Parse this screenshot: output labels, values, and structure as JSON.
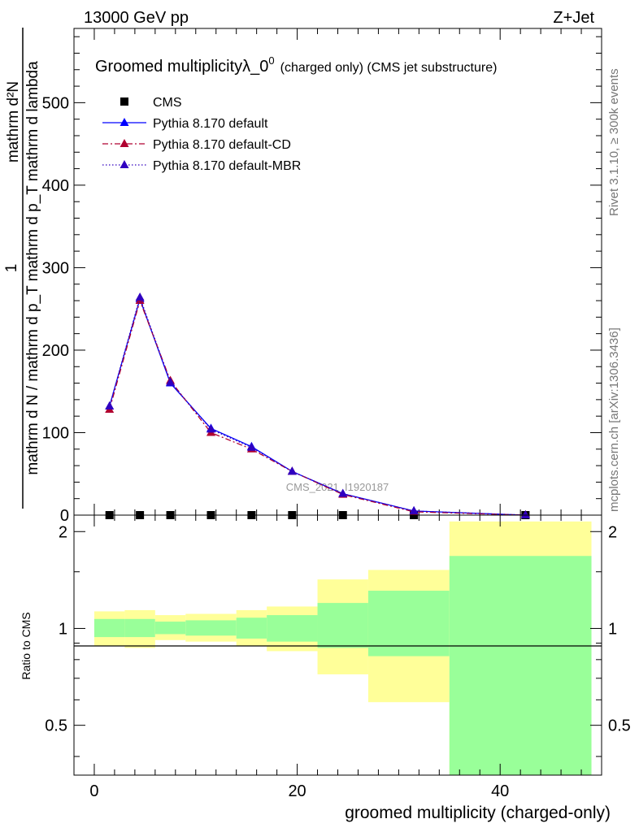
{
  "header": {
    "energy_label": "13000 GeV pp",
    "process_label": "Z+Jet"
  },
  "side": {
    "rivet_label": "Rivet 3.1.10, ≥ 300k events",
    "mcplots_label": "mcplots.cern.ch [arXiv:1306.3436]"
  },
  "chart_data": [
    {
      "type": "line",
      "title": "Groomed multiplicityλ_0",
      "title_sup": "0",
      "title_suffix": "(charged only) (CMS jet substructure)",
      "watermark": "CMS_2021_I1920187",
      "ylabel_top": "1",
      "ylabel_num": "mathrm d²N",
      "ylabel_den": "mathrm d N / mathrm d p_T mathrm d p_T mathrm d lambda",
      "ylim": [
        0,
        590
      ],
      "yticks": [
        "0",
        "100",
        "200",
        "300",
        "400",
        "500"
      ],
      "xlim": [
        -2,
        50
      ],
      "x": [
        1.5,
        4.5,
        7.5,
        11.5,
        15.5,
        19.5,
        24.5,
        31.5,
        42.5
      ],
      "series": [
        {
          "name": "CMS",
          "color": "#000000",
          "marker": "square",
          "values": [
            0,
            0,
            0,
            0,
            0,
            0,
            0,
            0,
            0
          ]
        },
        {
          "name": "Pythia 8.170 default",
          "color": "#0000ff",
          "marker": "triangle",
          "dash": "solid",
          "values": [
            132,
            262,
            160,
            105,
            83,
            53,
            26,
            5,
            0
          ]
        },
        {
          "name": "Pythia 8.170 default-CD",
          "color": "#b00030",
          "marker": "triangle",
          "dash": "dashdot",
          "values": [
            128,
            260,
            163,
            100,
            80,
            53,
            25,
            4,
            0
          ]
        },
        {
          "name": "Pythia 8.170 default-MBR",
          "color": "#3000c0",
          "marker": "triangle",
          "dash": "dotted",
          "values": [
            132,
            264,
            161,
            104,
            82,
            53,
            26,
            5,
            0
          ]
        }
      ]
    },
    {
      "type": "area",
      "ylabel": "Ratio to CMS",
      "xlabel": "groomed multiplicity (charged-only)",
      "ylim": [
        0.35,
        2.25
      ],
      "yticks": [
        "0.5",
        "1",
        "2"
      ],
      "xticks": [
        "0",
        "20",
        "40"
      ],
      "bins": [
        {
          "lo": 0,
          "hi": 3,
          "band1": [
            0.94,
            1.07
          ],
          "band2": [
            0.88,
            1.13
          ]
        },
        {
          "lo": 3,
          "hi": 6,
          "band1": [
            0.94,
            1.07
          ],
          "band2": [
            0.87,
            1.14
          ]
        },
        {
          "lo": 6,
          "hi": 9,
          "band1": [
            0.96,
            1.05
          ],
          "band2": [
            0.92,
            1.1
          ]
        },
        {
          "lo": 9,
          "hi": 14,
          "band1": [
            0.95,
            1.06
          ],
          "band2": [
            0.91,
            1.11
          ]
        },
        {
          "lo": 14,
          "hi": 17,
          "band1": [
            0.93,
            1.08
          ],
          "band2": [
            0.88,
            1.14
          ]
        },
        {
          "lo": 17,
          "hi": 22,
          "band1": [
            0.91,
            1.1
          ],
          "band2": [
            0.85,
            1.17
          ]
        },
        {
          "lo": 22,
          "hi": 27,
          "band1": [
            0.87,
            1.2
          ],
          "band2": [
            0.72,
            1.42
          ]
        },
        {
          "lo": 27,
          "hi": 35,
          "band1": [
            0.82,
            1.31
          ],
          "band2": [
            0.59,
            1.52
          ]
        },
        {
          "lo": 35,
          "hi": 49,
          "band1": [
            0.3,
            1.68
          ],
          "band2": [
            0.3,
            2.15
          ]
        }
      ],
      "band1_color": "#99ff99",
      "band2_color": "#ffff99"
    }
  ]
}
